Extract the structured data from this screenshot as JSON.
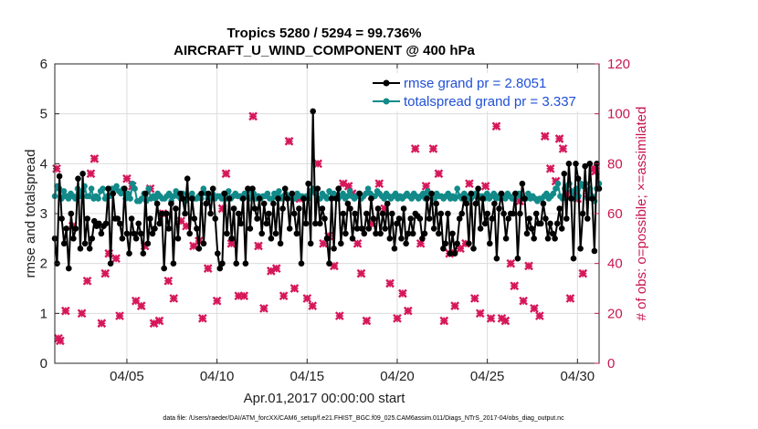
{
  "chart_data": {
    "type": "line",
    "title": "Tropics 5280 / 5294 = 99.736%",
    "subtitle": "AIRCRAFT_U_WIND_COMPONENT @ 400 hPa",
    "xlabel": "Apr.01,2017 00:00:00 start",
    "ylabel": "rmse and totalspread",
    "ylabel_right": "# of obs: o=possible; ×=assimilated",
    "xlim": [
      1.0,
      31.2
    ],
    "ylim": [
      0,
      6
    ],
    "ylim_right": [
      0,
      120
    ],
    "x_ticks": [
      5,
      10,
      15,
      20,
      25,
      30
    ],
    "x_tick_labels": [
      "04/05",
      "04/10",
      "04/15",
      "04/20",
      "04/25",
      "04/30"
    ],
    "y_ticks": [
      0,
      1,
      2,
      3,
      4,
      5,
      6
    ],
    "y_ticks_right": [
      0,
      20,
      40,
      60,
      80,
      100,
      120
    ],
    "footnote": "data file: /Users/raeder/DAI/ATM_forcXX/CAM6_setup/f.e21.FHIST_BGC.f09_025.CAM6assim.011/Diags_NTrS_2017-04/obs_diag_output.nc",
    "colors": {
      "rmse": "#000000",
      "spread": "#128a8a",
      "obs": "#d6175a",
      "legend_text": "#1f4fd6"
    },
    "series": [
      {
        "name": "rmse grand pr = 2.8051",
        "axis": "left",
        "values": [
          2.5,
          2.0,
          3.75,
          2.9,
          2.4,
          2.7,
          1.9,
          3.0,
          2.5,
          2.7,
          3.7,
          2.3,
          3.8,
          2.4,
          2.9,
          2.3,
          2.5,
          2.85,
          2.75,
          2.8,
          2.6,
          2.75,
          2.8,
          3.5,
          2.0,
          3.4,
          2.9,
          2.9,
          2.8,
          2.5,
          3.5,
          2.6,
          2.2,
          2.9,
          2.6,
          2.5,
          2.8,
          2.6,
          2.2,
          3.4,
          2.4,
          2.9,
          2.6,
          2.7,
          3.2,
          2.8,
          3.0,
          1.9,
          3.0,
          2.7,
          3.2,
          2.0,
          3.1,
          2.5,
          3.4,
          3.3,
          3.0,
          3.7,
          2.6,
          3.3,
          2.9,
          2.7,
          2.3,
          3.4,
          2.4,
          3.2,
          3.4,
          3.0,
          3.5,
          2.9,
          2.2,
          1.9,
          2.0,
          3.4,
          2.6,
          3.3,
          2.5,
          3.1,
          2.0,
          3.0,
          2.8,
          3.3,
          2.0,
          3.5,
          2.7,
          3.5,
          3.1,
          2.9,
          3.3,
          2.6,
          3.2,
          2.8,
          3.0,
          2.5,
          3.2,
          2.6,
          3.3,
          2.4,
          3.1,
          3.5,
          3.3,
          2.7,
          3.4,
          3.0,
          2.6,
          3.1,
          2.0,
          3.3,
          2.8,
          3.6,
          2.4,
          5.05,
          2.8,
          3.5,
          2.8,
          3.1,
          2.9,
          2.5,
          2.0,
          3.3,
          2.3,
          3.3,
          3.5,
          2.4,
          3.0,
          2.6,
          3.2,
          3.1,
          2.5,
          3.0,
          2.7,
          3.4,
          2.7,
          2.6,
          3.0,
          2.7,
          3.3,
          2.9,
          2.6,
          3.1,
          2.6,
          3.0,
          2.7,
          3.2,
          2.5,
          3.0,
          2.3,
          2.8,
          2.9,
          2.5,
          3.1,
          2.4,
          2.6,
          2.9,
          2.6,
          3.0,
          2.95,
          2.9,
          2.5,
          2.6,
          3.3,
          2.9,
          3.4,
          2.7,
          3.2,
          2.6,
          3.0,
          2.3,
          2.4,
          3.0,
          2.2,
          2.6,
          2.2,
          2.4,
          2.9,
          3.0,
          3.3,
          3.2,
          2.4,
          3.4,
          2.3,
          3.2,
          3.5,
          2.7,
          3.3,
          2.8,
          3.0,
          2.4,
          2.9,
          3.2,
          2.1,
          3.1,
          3.4,
          3.0,
          2.5,
          2.9,
          3.0,
          3.0,
          3.4,
          2.1,
          3.0,
          3.6,
          3.3,
          2.6,
          2.9,
          2.7,
          2.5,
          3.0,
          2.8,
          2.8,
          3.2,
          2.9,
          2.5,
          2.8,
          2.6,
          2.5,
          2.8,
          3.1,
          2.7,
          3.8,
          2.9,
          4.0,
          3.3,
          2.1,
          4.0,
          3.7,
          2.3,
          3.0,
          3.95,
          2.9,
          4.0,
          3.3,
          2.25,
          4.0,
          3.5
        ]
      },
      {
        "name": "totalspread grand pr = 3.337",
        "axis": "left",
        "values": [
          3.35,
          3.55,
          3.5,
          3.3,
          3.45,
          3.35,
          3.3,
          3.4,
          3.35,
          3.3,
          3.5,
          3.35,
          3.45,
          3.55,
          3.35,
          3.35,
          3.5,
          3.3,
          3.35,
          3.3,
          3.45,
          3.5,
          3.3,
          3.35,
          3.35,
          3.5,
          3.5,
          3.55,
          3.45,
          3.4,
          3.5,
          3.3,
          3.4,
          3.3,
          3.6,
          3.5,
          3.25,
          3.25,
          3.3,
          3.4,
          3.25,
          3.5,
          3.3,
          3.35,
          3.3,
          3.4,
          3.35,
          3.3,
          3.3,
          3.35,
          3.4,
          3.25,
          3.35,
          3.45,
          3.35,
          3.3,
          3.4,
          3.25,
          3.3,
          3.35,
          3.4,
          3.3,
          3.3,
          3.35,
          3.3,
          3.5,
          3.4,
          3.3,
          3.3,
          3.4,
          3.3,
          3.35,
          3.35,
          3.3,
          3.4,
          3.3,
          3.45,
          3.3,
          3.35,
          3.4,
          3.35,
          3.35,
          3.3,
          3.4,
          3.35,
          3.3,
          3.45,
          3.4,
          3.3,
          3.35,
          3.3,
          3.35,
          3.35,
          3.4,
          3.3,
          3.3,
          3.4,
          3.35,
          3.45,
          3.3,
          3.35,
          3.4,
          3.3,
          3.35,
          3.3,
          3.3,
          3.4,
          3.35,
          3.35,
          3.3,
          3.35,
          3.3,
          3.45,
          3.5,
          3.4,
          3.3,
          3.3,
          3.4,
          3.35,
          3.3,
          3.45,
          3.3,
          3.4,
          3.35,
          3.3,
          3.35,
          3.4,
          3.3,
          3.35,
          3.45,
          3.35,
          3.3,
          3.35,
          3.4,
          3.3,
          3.35,
          3.4,
          3.5,
          3.4,
          3.35,
          3.35,
          3.45,
          3.4,
          3.35,
          3.3,
          3.4,
          3.35,
          3.3,
          3.35,
          3.4,
          3.3,
          3.35,
          3.3,
          3.35,
          3.4,
          3.35,
          3.3,
          3.4,
          3.35,
          3.3,
          3.35,
          3.4,
          3.3,
          3.45,
          3.35,
          3.35,
          3.3,
          3.4,
          3.35,
          3.35,
          3.3,
          3.35,
          3.4,
          3.3,
          3.35,
          3.3,
          3.5,
          3.35,
          3.3,
          3.4,
          3.35,
          3.3,
          3.3,
          3.35,
          3.4,
          3.3,
          3.35,
          3.35,
          3.3,
          3.4,
          3.3,
          3.35,
          3.4,
          3.3,
          3.35,
          3.3,
          3.35,
          3.3,
          3.4,
          3.35,
          3.3,
          3.3,
          3.35,
          3.4,
          3.35,
          3.3,
          3.3,
          3.4,
          3.3,
          3.35,
          3.3,
          3.25,
          3.3,
          3.3,
          3.35,
          3.4,
          3.3,
          3.35,
          3.4,
          3.5,
          3.6,
          3.35,
          3.3,
          3.5,
          3.55,
          3.6,
          3.45,
          3.3,
          3.5,
          3.35,
          3.6,
          3.55,
          3.6,
          3.3,
          3.5,
          3.35,
          3.25,
          3.5,
          3.6
        ]
      },
      {
        "name": "obs possible / assimilated",
        "axis": "right",
        "marker": "x",
        "points": [
          [
            1.1,
            78
          ],
          [
            1.2,
            10
          ],
          [
            1.3,
            9
          ],
          [
            1.6,
            21
          ],
          [
            2.0,
            55
          ],
          [
            2.5,
            20
          ],
          [
            2.8,
            33
          ],
          [
            3.0,
            76
          ],
          [
            3.2,
            82
          ],
          [
            3.6,
            16
          ],
          [
            3.8,
            36
          ],
          [
            4.0,
            44
          ],
          [
            4.4,
            42
          ],
          [
            4.6,
            19
          ],
          [
            5.0,
            74
          ],
          [
            5.3,
            71
          ],
          [
            5.5,
            25
          ],
          [
            5.8,
            23
          ],
          [
            6.0,
            47
          ],
          [
            6.3,
            70
          ],
          [
            6.5,
            16
          ],
          [
            6.8,
            17
          ],
          [
            7.0,
            60
          ],
          [
            7.3,
            33
          ],
          [
            7.6,
            26
          ],
          [
            8.0,
            57
          ],
          [
            8.3,
            55
          ],
          [
            8.7,
            47
          ],
          [
            9.0,
            49
          ],
          [
            9.2,
            18
          ],
          [
            9.5,
            38
          ],
          [
            10.0,
            25
          ],
          [
            10.3,
            62
          ],
          [
            10.5,
            76
          ],
          [
            10.8,
            48
          ],
          [
            11.2,
            27
          ],
          [
            11.5,
            27
          ],
          [
            12.0,
            99
          ],
          [
            12.3,
            47
          ],
          [
            12.6,
            22
          ],
          [
            13.0,
            37
          ],
          [
            13.3,
            38
          ],
          [
            13.7,
            27
          ],
          [
            14.0,
            89
          ],
          [
            14.3,
            30
          ],
          [
            14.6,
            66
          ],
          [
            15.0,
            26
          ],
          [
            15.3,
            23
          ],
          [
            15.6,
            80
          ],
          [
            15.9,
            48
          ],
          [
            16.2,
            51
          ],
          [
            16.5,
            39
          ],
          [
            16.8,
            19
          ],
          [
            17.0,
            72
          ],
          [
            17.3,
            71
          ],
          [
            17.5,
            68
          ],
          [
            17.8,
            48
          ],
          [
            18.0,
            36
          ],
          [
            18.3,
            17
          ],
          [
            18.6,
            56
          ],
          [
            19.0,
            72
          ],
          [
            19.3,
            62
          ],
          [
            19.6,
            32
          ],
          [
            20.0,
            18
          ],
          [
            20.3,
            28
          ],
          [
            20.6,
            21
          ],
          [
            21.0,
            86
          ],
          [
            21.3,
            48
          ],
          [
            21.6,
            71
          ],
          [
            22.0,
            86
          ],
          [
            22.3,
            76
          ],
          [
            22.6,
            17
          ],
          [
            22.9,
            44
          ],
          [
            23.2,
            23
          ],
          [
            23.5,
            46
          ],
          [
            23.8,
            48
          ],
          [
            24.0,
            72
          ],
          [
            24.3,
            26
          ],
          [
            24.6,
            20
          ],
          [
            24.9,
            71
          ],
          [
            25.2,
            18
          ],
          [
            25.5,
            95
          ],
          [
            25.8,
            18
          ],
          [
            26.0,
            17
          ],
          [
            26.3,
            40
          ],
          [
            26.5,
            31
          ],
          [
            26.8,
            65
          ],
          [
            27.0,
            25
          ],
          [
            27.3,
            39
          ],
          [
            27.6,
            22
          ],
          [
            27.9,
            19
          ],
          [
            28.2,
            91
          ],
          [
            28.5,
            78
          ],
          [
            28.8,
            73
          ],
          [
            29.0,
            90
          ],
          [
            29.2,
            86
          ],
          [
            29.4,
            68
          ],
          [
            29.6,
            26
          ],
          [
            29.8,
            67
          ],
          [
            30.0,
            66
          ],
          [
            30.3,
            36
          ],
          [
            30.6,
            68
          ],
          [
            30.9,
            78
          ],
          [
            31.0,
            77
          ]
        ]
      }
    ]
  }
}
